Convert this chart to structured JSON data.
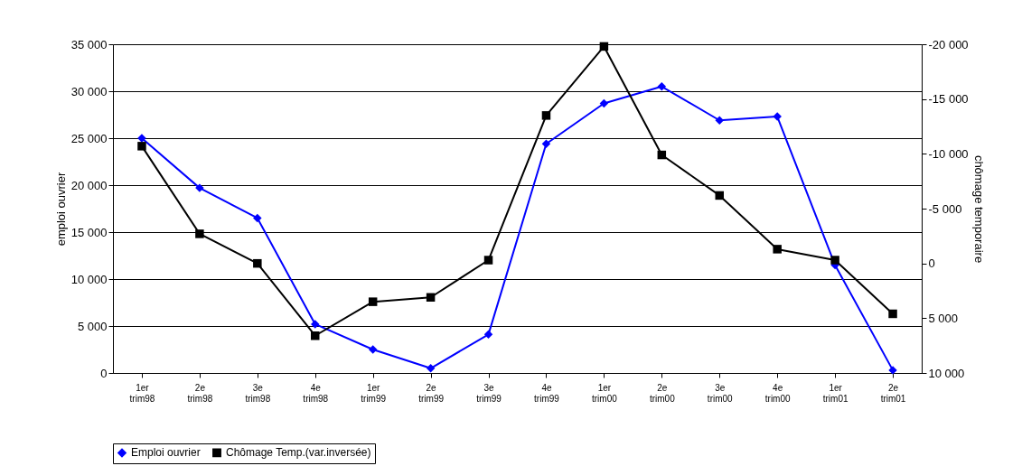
{
  "chart_data": {
    "type": "line",
    "ylabel": "emploi ouvrier",
    "y2label": "chômage temporaire",
    "categories": [
      "1er trim98",
      "2e trim98",
      "3e trim98",
      "4e trim98",
      "1er trim99",
      "2e trim99",
      "3e trim99",
      "4e trim99",
      "1er trim00",
      "2e trim00",
      "3e trim00",
      "4e trim00",
      "1er trim01",
      "2e trim01"
    ],
    "series": [
      {
        "name": "Emploi ouvrier",
        "color": "#0000ff",
        "marker": "diamond",
        "values": [
          25000,
          19700,
          16500,
          5200,
          2500,
          500,
          4100,
          24400,
          28700,
          30500,
          26900,
          27300,
          11500,
          300
        ]
      },
      {
        "name": "Chômage Temp.(var.inversée)",
        "color": "#000000",
        "marker": "square",
        "axis": "y2",
        "values": [
          -10700,
          -2700,
          0,
          6600,
          3500,
          3100,
          -300,
          -13500,
          -19800,
          -9900,
          -6200,
          -1300,
          -300,
          4600
        ]
      }
    ],
    "ylim": [
      0,
      35000
    ],
    "yticks": [
      0,
      {
        "value": 5000,
        "label": "5 000"
      },
      {
        "value": 10000,
        "label": "10 000"
      },
      {
        "value": 15000,
        "label": "15 000"
      },
      {
        "value": 20000,
        "label": "20 000"
      },
      {
        "value": 25000,
        "label": "25 000"
      },
      {
        "value": 30000,
        "label": "30 000"
      },
      {
        "value": 35000,
        "label": "35 000"
      }
    ],
    "y2lim": [
      10000,
      -20000
    ],
    "y2ticks": [
      {
        "value": 10000,
        "label": "10 000"
      },
      {
        "value": 5000,
        "label": "5 000"
      },
      0,
      {
        "value": -5000,
        "label": "-5 000"
      },
      {
        "value": -10000,
        "label": "-10 000"
      },
      {
        "value": -15000,
        "label": "-15 000"
      },
      {
        "value": -20000,
        "label": "-20 000"
      }
    ],
    "grid": "y",
    "legend": "bottom"
  }
}
